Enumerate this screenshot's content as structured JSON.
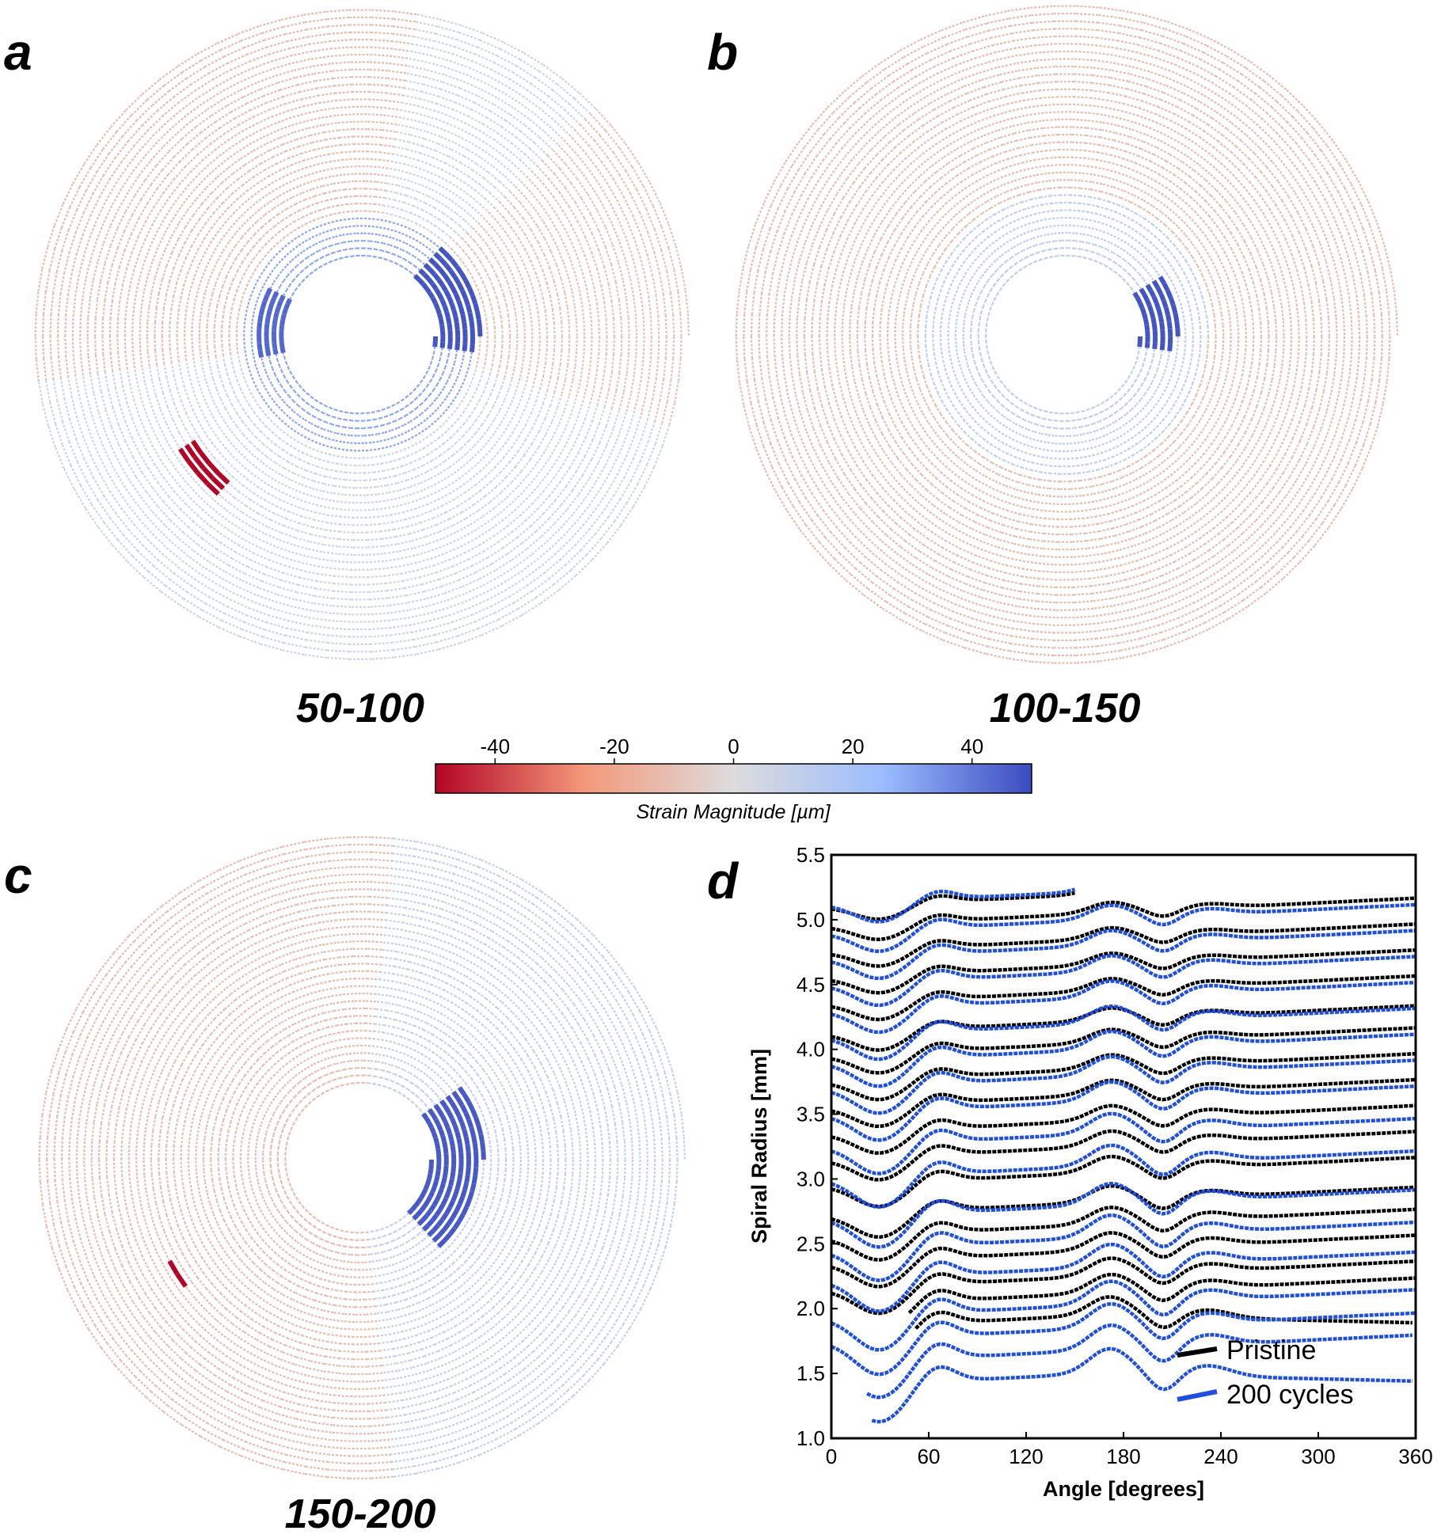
{
  "figure": {
    "panels": [
      {
        "letter": "a",
        "range_label": "50-100"
      },
      {
        "letter": "b",
        "range_label": "100-150"
      },
      {
        "letter": "c",
        "range_label": "150-200"
      },
      {
        "letter": "d"
      }
    ],
    "colorbar": {
      "label": "Strain Magnitude [µm]",
      "ticks": [
        "-40",
        "-20",
        "0",
        "20",
        "40"
      ],
      "range": [
        -50,
        50
      ],
      "colors": [
        "#b40426",
        "#f4987a",
        "#dddcdc",
        "#9bbcff",
        "#3b4cc0"
      ]
    }
  },
  "chart_data": [
    {
      "type": "heatmap",
      "panel": "a",
      "title": "50-100",
      "description_of_values": "strain magnitude along spiral layers (µm)",
      "color_range": [
        -50,
        50
      ],
      "outer_layers": "mild negative (orange) on left/upper-right, mild positive (light blue) elsewhere",
      "hotspots": [
        {
          "location": "inner core upper-right",
          "value": 45
        },
        {
          "location": "inner core left",
          "value": 40
        },
        {
          "location": "outer-left patch",
          "value": -50
        }
      ]
    },
    {
      "type": "heatmap",
      "panel": "b",
      "title": "100-150",
      "description_of_values": "strain magnitude along spiral layers (µm)",
      "color_range": [
        -50,
        50
      ],
      "outer_layers": "mild negative (orange)",
      "inner_layers": "mild positive (light blue)",
      "hotspots": [
        {
          "location": "inner core right",
          "value": 45
        }
      ]
    },
    {
      "type": "heatmap",
      "panel": "c",
      "title": "150-200",
      "description_of_values": "strain magnitude along spiral layers (µm)",
      "color_range": [
        -50,
        50
      ],
      "outer_layers": "mild negative (orange) on left, mild positive (light blue) on right",
      "hotspots": [
        {
          "location": "inner core right",
          "value": 45
        },
        {
          "location": "outer-left small patch",
          "value": -50
        }
      ]
    },
    {
      "type": "line",
      "panel": "d",
      "xlabel": "Angle [degrees]",
      "ylabel": "Spiral Radius [mm]",
      "xlim": [
        0,
        360
      ],
      "ylim": [
        1.0,
        5.5
      ],
      "xticks": [
        "0",
        "60",
        "120",
        "180",
        "240",
        "300",
        "360"
      ],
      "yticks": [
        "1.0",
        "1.5",
        "2.0",
        "2.5",
        "3.0",
        "3.5",
        "4.0",
        "4.5",
        "5.0",
        "5.5"
      ],
      "legend": {
        "position": "lower-right",
        "entries": [
          "Pristine",
          "200 cycles"
        ]
      },
      "series": [
        {
          "name": "Pristine",
          "color": "#000000",
          "layer_count": 18,
          "start_radius": [
            1.85,
            2.02,
            2.15,
            2.35,
            2.55,
            2.72,
            2.95,
            3.15,
            3.35,
            3.55,
            3.75,
            3.95,
            4.12,
            4.35,
            4.55,
            4.75,
            4.95,
            5.1
          ],
          "layer_spacing_mm": 0.2
        },
        {
          "name": "200 cycles",
          "color": "#1f4fe0",
          "layer_count": 18,
          "start_radius": [
            1.4,
            1.58,
            1.75,
            1.93,
            2.22,
            2.45,
            2.7,
            3.0,
            3.25,
            3.5,
            3.7,
            3.9,
            4.1,
            4.3,
            4.5,
            4.7,
            4.9,
            5.12
          ],
          "layer_spacing_mm": 0.2
        }
      ]
    }
  ]
}
